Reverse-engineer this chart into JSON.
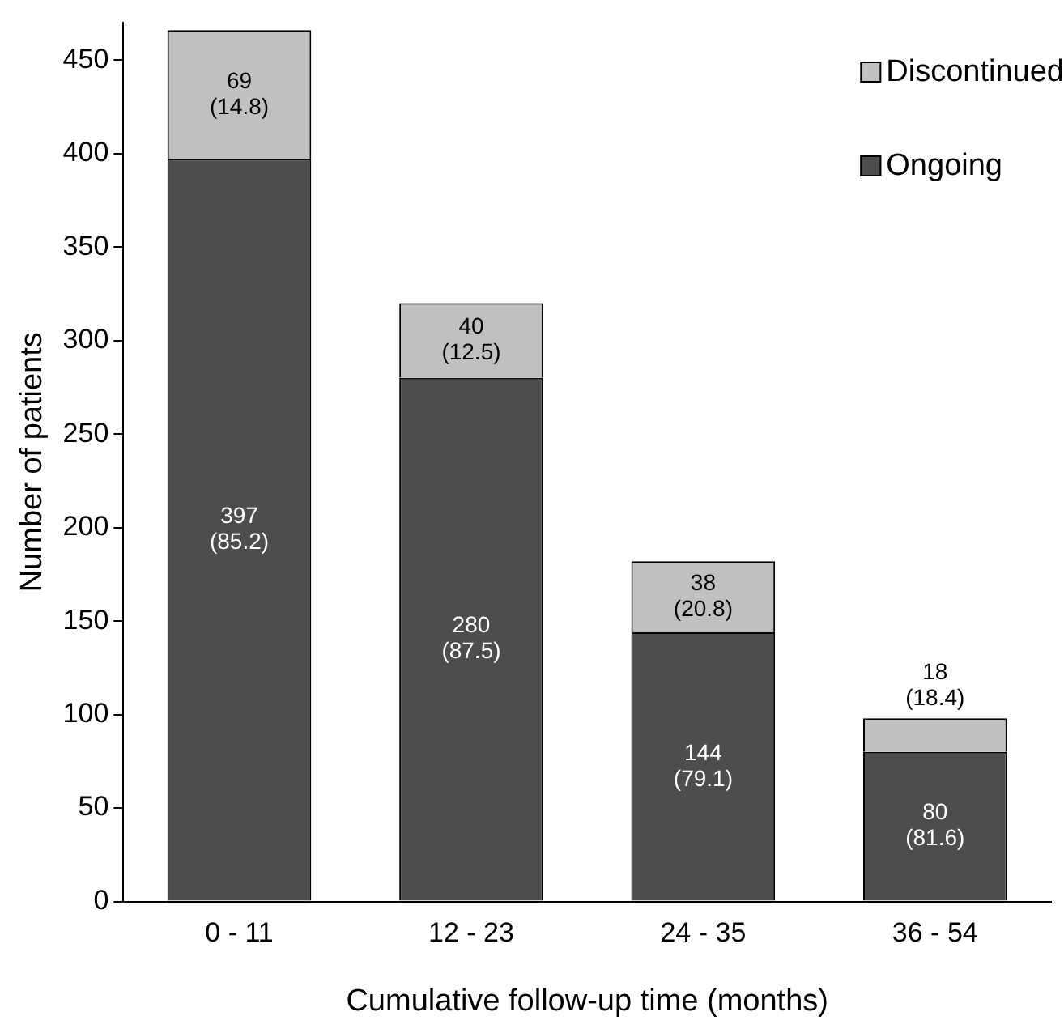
{
  "chart_data": {
    "type": "bar",
    "stacked": true,
    "xlabel": "Cumulative follow-up time (months)",
    "ylabel": "Number of patients",
    "categories": [
      "0 - 11",
      "12 - 23",
      "24 - 35",
      "36 - 54"
    ],
    "series": [
      {
        "name": "Ongoing",
        "color": "#4d4d4d",
        "values": [
          397,
          280,
          144,
          80
        ],
        "value_labels": [
          "397\n(85.2)",
          "280\n(87.5)",
          "144\n(79.1)",
          "80\n(81.6)"
        ]
      },
      {
        "name": "Discontinued",
        "color": "#c0c0c0",
        "values": [
          69,
          40,
          38,
          18
        ],
        "value_labels": [
          "69\n(14.8)",
          "40\n(12.5)",
          "38\n(20.8)",
          "18\n(18.4)"
        ]
      }
    ],
    "ylim": [
      0,
      470
    ],
    "yticks": [
      0,
      50,
      100,
      150,
      200,
      250,
      300,
      350,
      400,
      450
    ],
    "grid": false,
    "legend": "top right"
  }
}
